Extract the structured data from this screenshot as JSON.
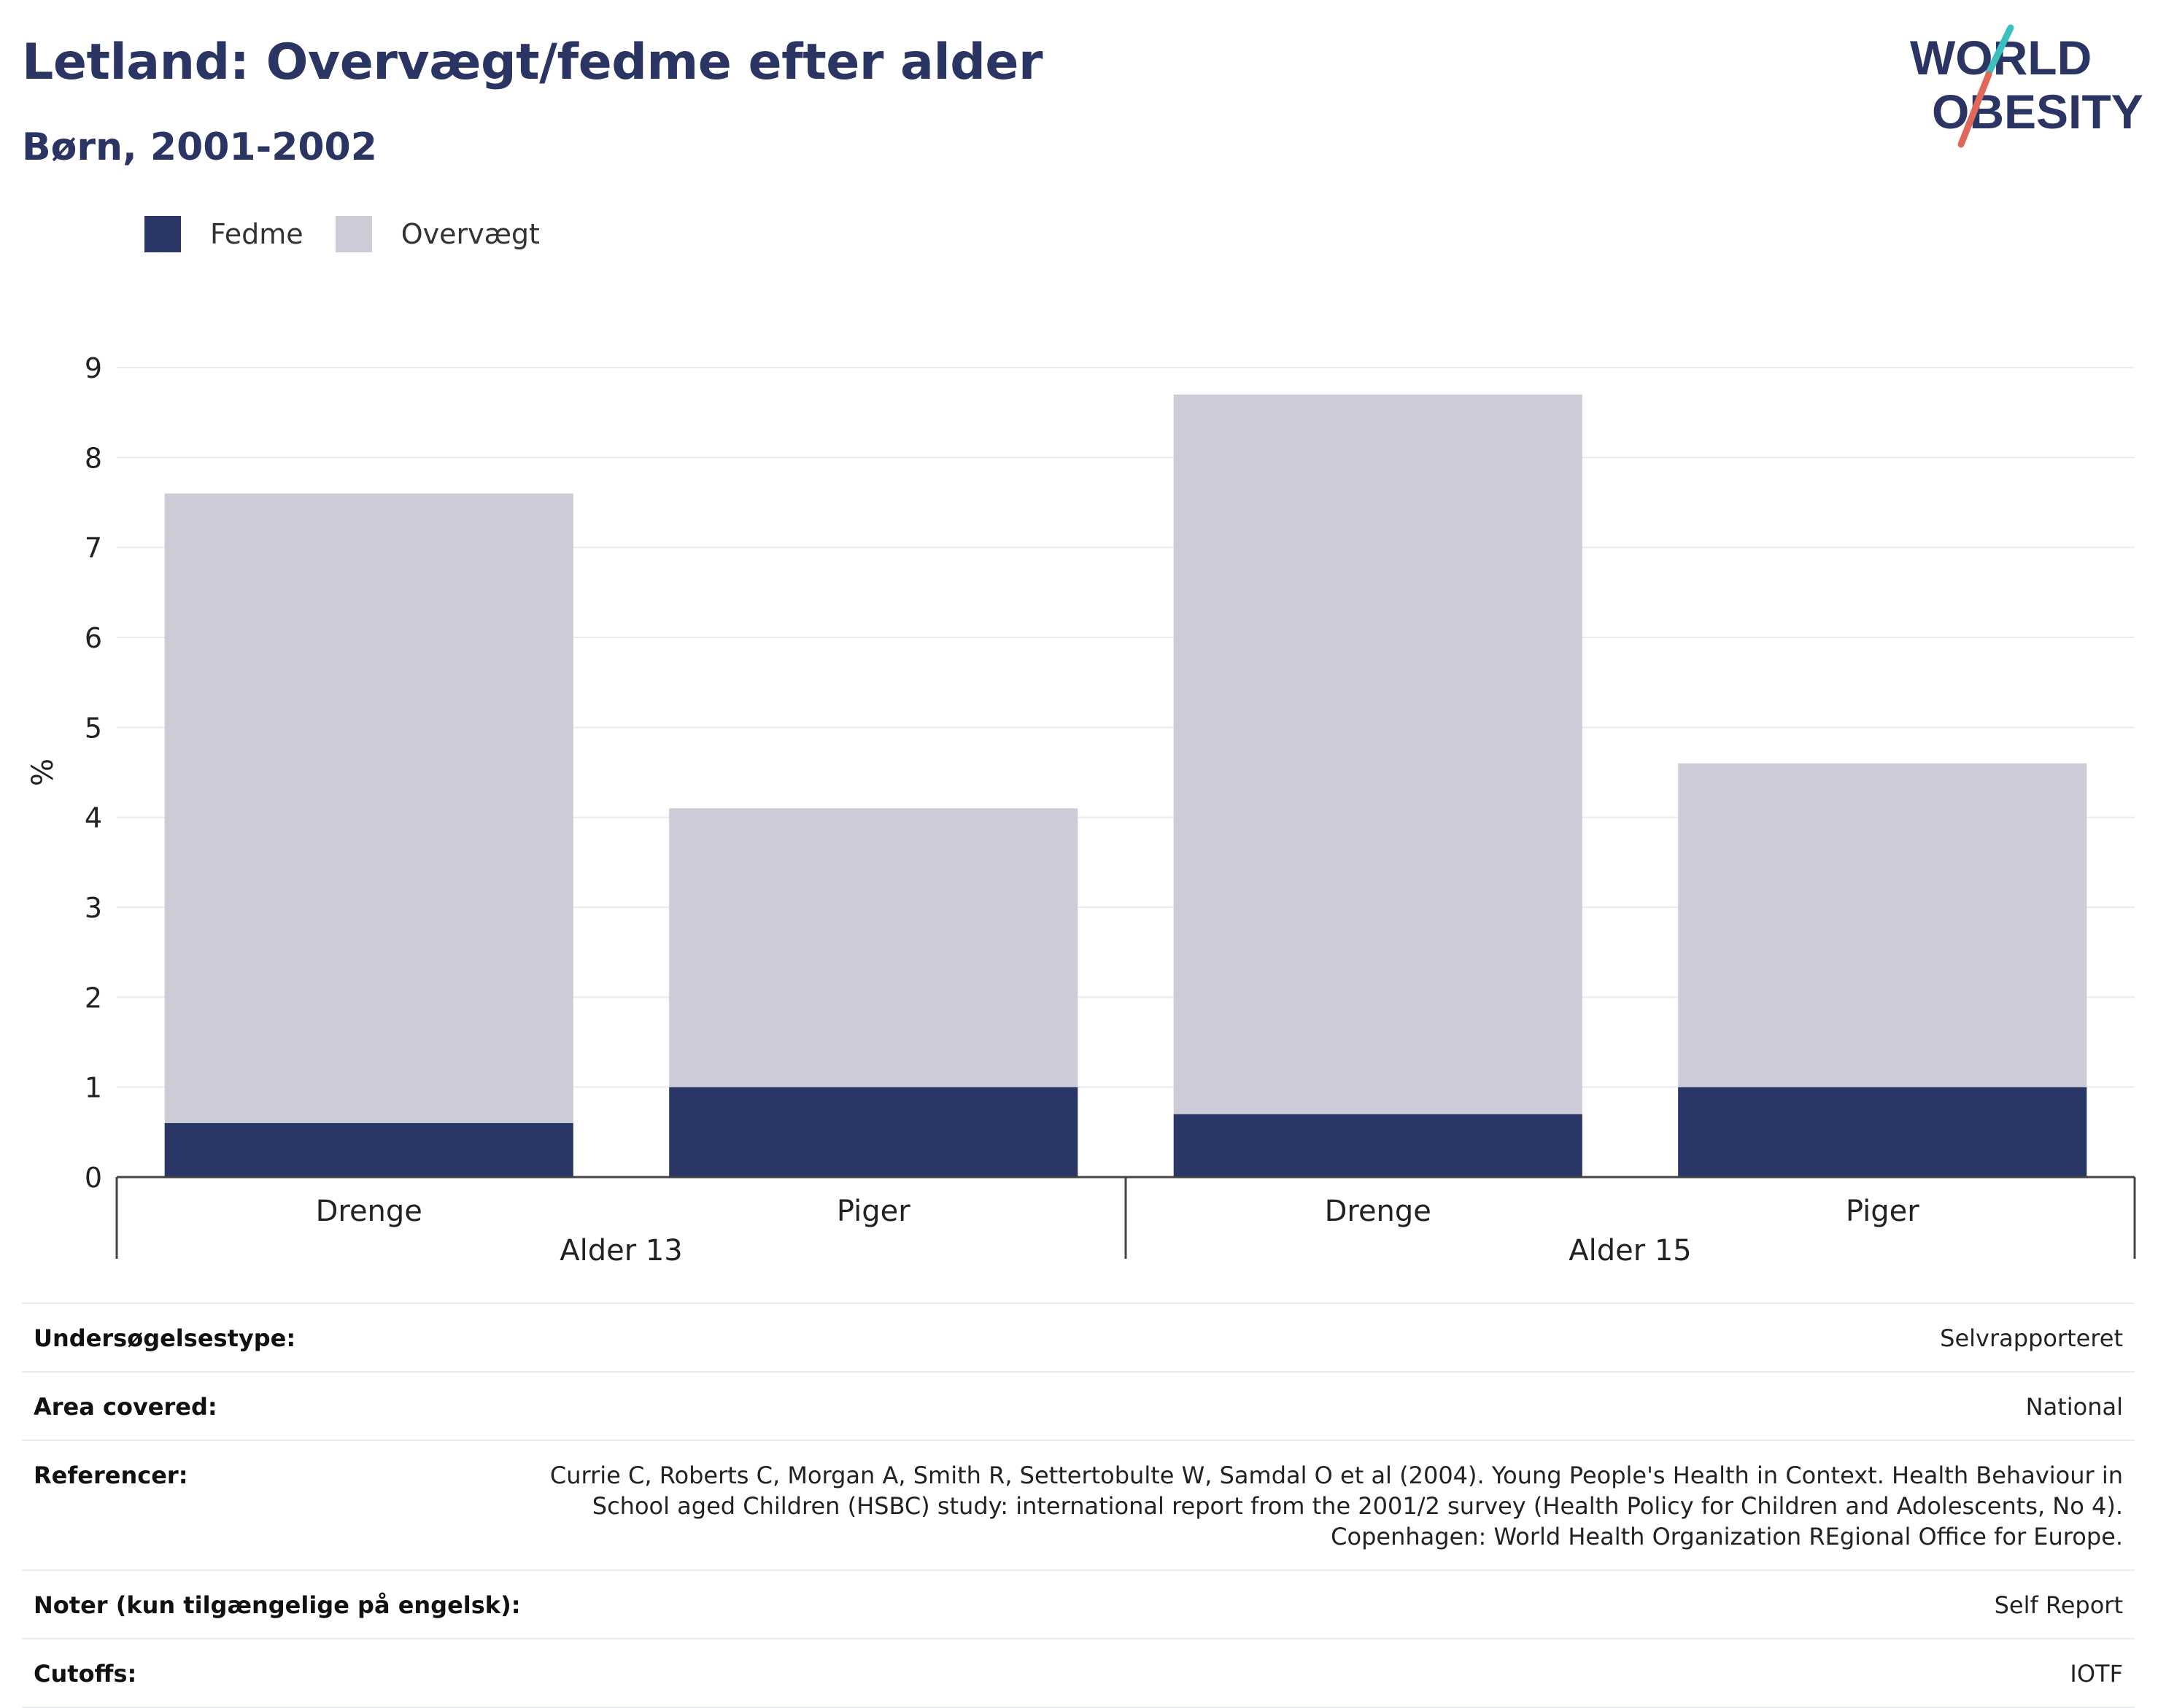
{
  "header": {
    "title": "Letland: Overvægt/fedme efter alder",
    "subtitle": "Børn, 2001-2002"
  },
  "logo": {
    "line1": "WORLD",
    "line2": "OBESITY"
  },
  "colors": {
    "fedme": "#2a3665",
    "overvaegt": "#cbccd7",
    "title": "#2b3563",
    "accent_teal": "#3bbfbf",
    "accent_red": "#e0685a"
  },
  "legend": [
    {
      "label": "Fedme",
      "color": "#2a3665"
    },
    {
      "label": "Overvægt",
      "color": "#cbccd7"
    }
  ],
  "chart_data": {
    "type": "bar",
    "stacked": true,
    "categories": [
      "Drenge",
      "Piger",
      "Drenge",
      "Piger"
    ],
    "groups": [
      {
        "label": "Alder 13",
        "categories": [
          "Drenge",
          "Piger"
        ]
      },
      {
        "label": "Alder 15",
        "categories": [
          "Drenge",
          "Piger"
        ]
      }
    ],
    "series": [
      {
        "name": "Fedme",
        "values": [
          0.6,
          1.0,
          0.7,
          1.0
        ]
      },
      {
        "name": "Overvægt",
        "values": [
          7.0,
          3.1,
          8.0,
          3.6
        ]
      }
    ],
    "ylabel": "%",
    "ylim": [
      0,
      9
    ],
    "yticks": [
      0,
      1,
      2,
      3,
      4,
      5,
      6,
      7,
      8,
      9
    ],
    "grid": true,
    "legend_position": "top-left"
  },
  "meta": [
    {
      "label": "Undersøgelsestype:",
      "value": "Selvrapporteret"
    },
    {
      "label": "Area covered:",
      "value": "National"
    },
    {
      "label": "Referencer:",
      "value_lines": [
        "Currie C, Roberts C, Morgan A, Smith R, Settertobulte W, Samdal O et al (2004). Young People's Health in Context. Health Behaviour in",
        "School aged Children (HSBC) study: international report from the 2001/2 survey (Health Policy for Children and Adolescents, No 4).",
        "Copenhagen: World Health Organization REgional Office for Europe."
      ]
    },
    {
      "label": "Noter (kun tilgængelige på engelsk):",
      "value": "Self Report"
    },
    {
      "label": "Cutoffs:",
      "value": "IOTF"
    }
  ]
}
